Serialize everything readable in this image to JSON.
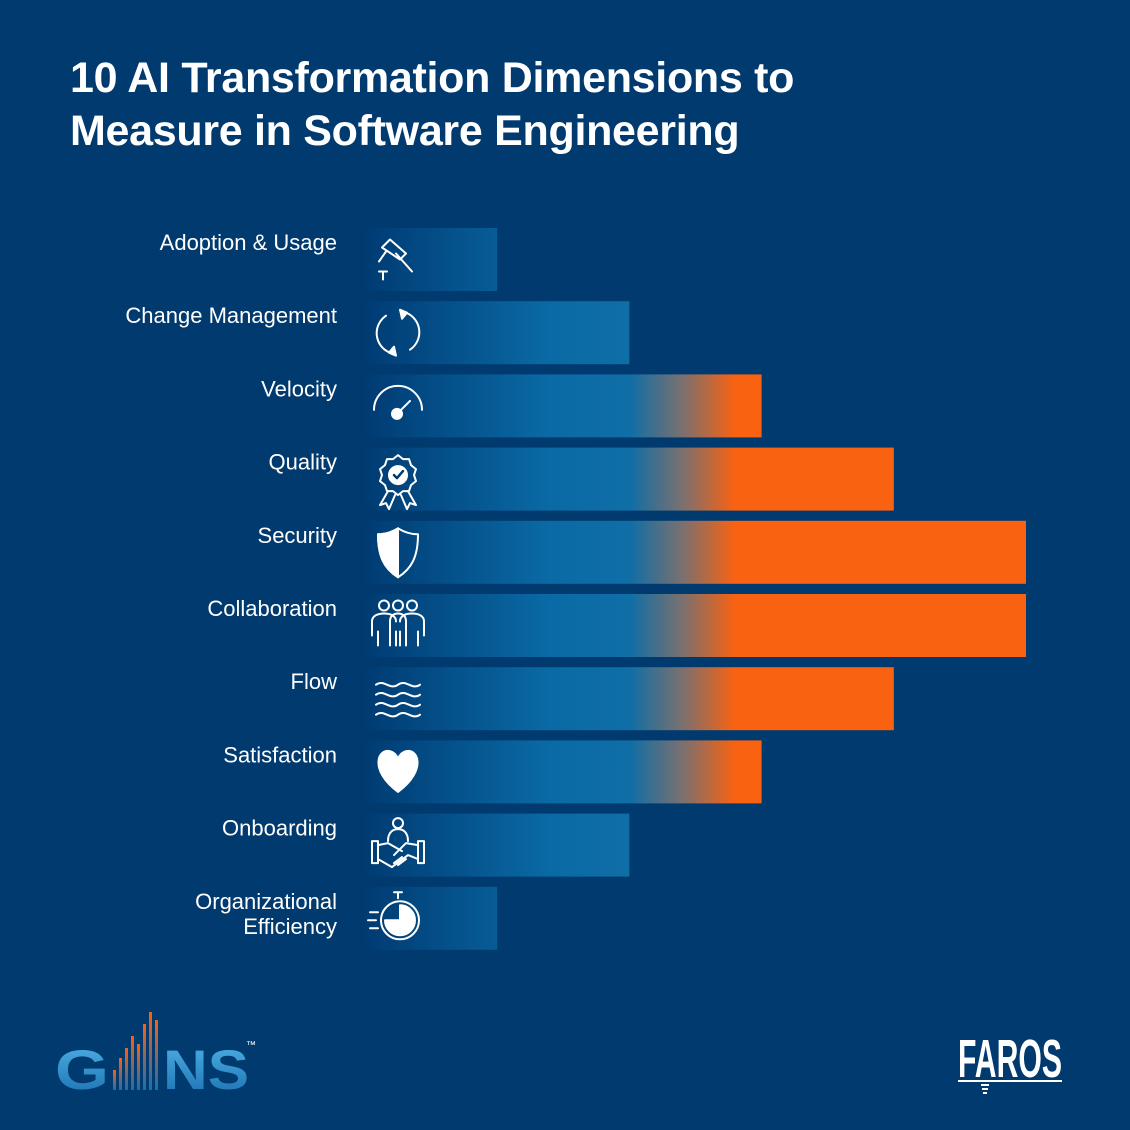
{
  "header": {
    "title_line1": "10 AI Transformation Dimensions to",
    "title_line2": "Measure in Software Engineering"
  },
  "chart_data": {
    "type": "bar",
    "orientation": "horizontal",
    "title": "10 AI Transformation Dimensions to Measure in Software Engineering",
    "categories": [
      [
        "Adoption & Usage"
      ],
      [
        "Change Management"
      ],
      [
        "Velocity"
      ],
      [
        "Quality"
      ],
      [
        "Security"
      ],
      [
        "Collaboration"
      ],
      [
        "Flow"
      ],
      [
        "Satisfaction"
      ],
      [
        "Onboarding"
      ],
      [
        "Organizational",
        "Efficiency"
      ]
    ],
    "icons": [
      "hammer-icon",
      "refresh-cycle-icon",
      "speedometer-icon",
      "award-badge-icon",
      "shield-icon",
      "team-people-icon",
      "waves-flow-icon",
      "heart-icon",
      "handshake-icon",
      "stopwatch-icon"
    ],
    "values": [
      1,
      2,
      3,
      4,
      5,
      5,
      4,
      3,
      2,
      1
    ],
    "xlim": [
      0,
      5
    ],
    "grid": false,
    "legend": "none",
    "colors": {
      "background": "#003a6e",
      "bar_start": "#003b73",
      "bar_mid": "#0a6aa5",
      "bar_end": "#f96211",
      "text": "#ffffff"
    }
  },
  "logos": {
    "gains": {
      "text": "GAINS",
      "tm": "™"
    },
    "faros": {
      "text": "FAROS"
    }
  }
}
